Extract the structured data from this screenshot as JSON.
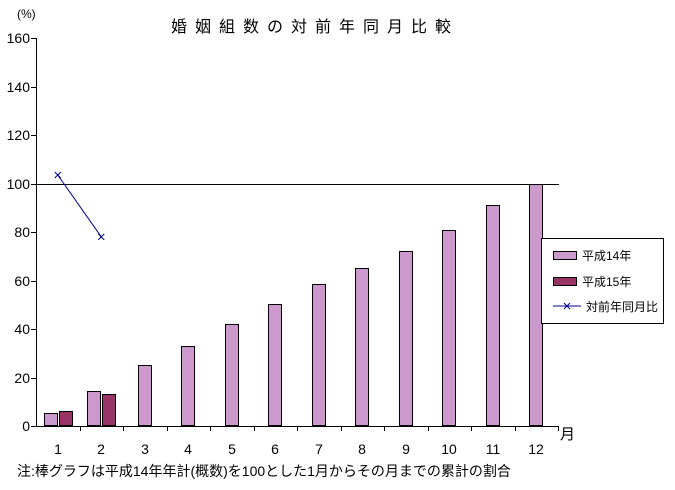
{
  "chart_data": {
    "type": "combo-bar-line",
    "title": "婚姻組数の対前年同月比較",
    "y_unit": "(%)",
    "x_unit": "月",
    "note": "注:棒グラフは平成14年年計(概数)を100とした1月からその月までの累計の割合",
    "categories": [
      "1",
      "2",
      "3",
      "4",
      "5",
      "6",
      "7",
      "8",
      "9",
      "10",
      "11",
      "12"
    ],
    "y_ticks": [
      0,
      20,
      40,
      60,
      80,
      100,
      120,
      140,
      160
    ],
    "ylim": [
      0,
      160
    ],
    "reference_line": 100,
    "legend_position": "right",
    "grid": false,
    "series": [
      {
        "name": "平成14年",
        "type": "bar",
        "color": "#CC99CC",
        "values": [
          5.5,
          14.5,
          25,
          33,
          42,
          50.5,
          58.5,
          65,
          72,
          81,
          91,
          100
        ]
      },
      {
        "name": "平成15年",
        "type": "bar",
        "color": "#993366",
        "values": [
          6,
          13,
          null,
          null,
          null,
          null,
          null,
          null,
          null,
          null,
          null,
          null
        ]
      },
      {
        "name": "対前年同月比",
        "type": "line",
        "marker": "x",
        "color": "#000080",
        "values": [
          103.5,
          78,
          null,
          null,
          null,
          null,
          null,
          null,
          null,
          null,
          null,
          null
        ]
      }
    ]
  }
}
